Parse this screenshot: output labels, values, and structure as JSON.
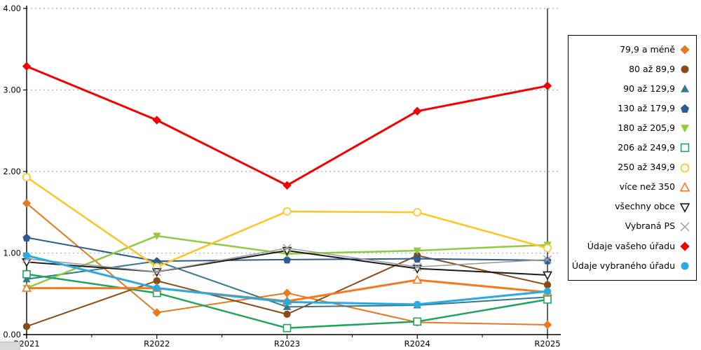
{
  "chart_data": {
    "type": "line",
    "categories": [
      "R2021",
      "R2022",
      "R2023",
      "R2024",
      "R2025"
    ],
    "ylim": [
      0,
      4
    ],
    "ytick_labels": [
      "0.00",
      "1.00",
      "2.00",
      "3.00",
      "4.00"
    ],
    "grid": "horizontal-dotted",
    "legend_position": "right",
    "series": [
      {
        "name": "79,9 a méně",
        "marker": "diamond",
        "style": "filled",
        "color": "#E8791E",
        "line_width": 2,
        "values": [
          1.61,
          0.27,
          0.51,
          0.15,
          0.12
        ]
      },
      {
        "name": "80 až 89,9",
        "marker": "circle",
        "style": "filled",
        "color": "#8B4A17",
        "line_width": 2,
        "values": [
          0.1,
          0.66,
          0.25,
          0.97,
          0.61
        ]
      },
      {
        "name": "90 až 129,9",
        "marker": "triangle-up",
        "style": "filled",
        "color": "#35788F",
        "line_width": 2,
        "values": [
          0.68,
          0.9,
          0.34,
          0.36,
          0.46
        ]
      },
      {
        "name": "130 až 179,9",
        "marker": "pentagon",
        "style": "filled",
        "color": "#2F5B93",
        "line_width": 2,
        "values": [
          1.19,
          0.9,
          0.92,
          0.93,
          0.91
        ]
      },
      {
        "name": "180 až 205,9",
        "marker": "triangle-down",
        "style": "filled",
        "color": "#8FCB41",
        "line_width": 2.5,
        "values": [
          0.57,
          1.21,
          0.99,
          1.03,
          1.1
        ]
      },
      {
        "name": "206 až 249,9",
        "marker": "square",
        "style": "open",
        "color": "#1EA55C",
        "line_width": 2.5,
        "values": [
          0.74,
          0.51,
          0.08,
          0.16,
          0.43
        ]
      },
      {
        "name": "250 až 349,9",
        "marker": "circle",
        "style": "open",
        "color": "#FFC420",
        "line_width": 2.5,
        "values": [
          1.93,
          0.83,
          1.51,
          1.5,
          1.06
        ]
      },
      {
        "name": "více než 350",
        "marker": "triangle-up",
        "style": "open",
        "color": "#F47920",
        "line_width": 3,
        "values": [
          0.57,
          0.57,
          0.41,
          0.67,
          0.52
        ]
      },
      {
        "name": "všechny obce",
        "marker": "triangle-down",
        "style": "open",
        "color": "#1A1A1A",
        "line_width": 2,
        "values": [
          0.89,
          0.77,
          1.03,
          0.81,
          0.73
        ]
      },
      {
        "name": "Vybraná PS",
        "marker": "cross",
        "style": "open",
        "color": "#9C9C9C",
        "line_width": 1.6,
        "values": [
          0.93,
          0.77,
          1.06,
          0.83,
          0.92
        ]
      },
      {
        "name": "Údaje vašeho úřadu",
        "marker": "diamond",
        "style": "filled",
        "color": "#F40000",
        "line_width": 3,
        "values": [
          3.29,
          2.63,
          1.83,
          2.74,
          3.05
        ]
      },
      {
        "name": "Údaje vybraného úřadu",
        "marker": "circle",
        "style": "filled",
        "color": "#29ABE2",
        "line_width": 3,
        "values": [
          0.97,
          0.57,
          0.4,
          0.37,
          0.53
        ]
      }
    ],
    "colors": {
      "grid": "#b0b0b0",
      "axis": "#000000"
    }
  }
}
